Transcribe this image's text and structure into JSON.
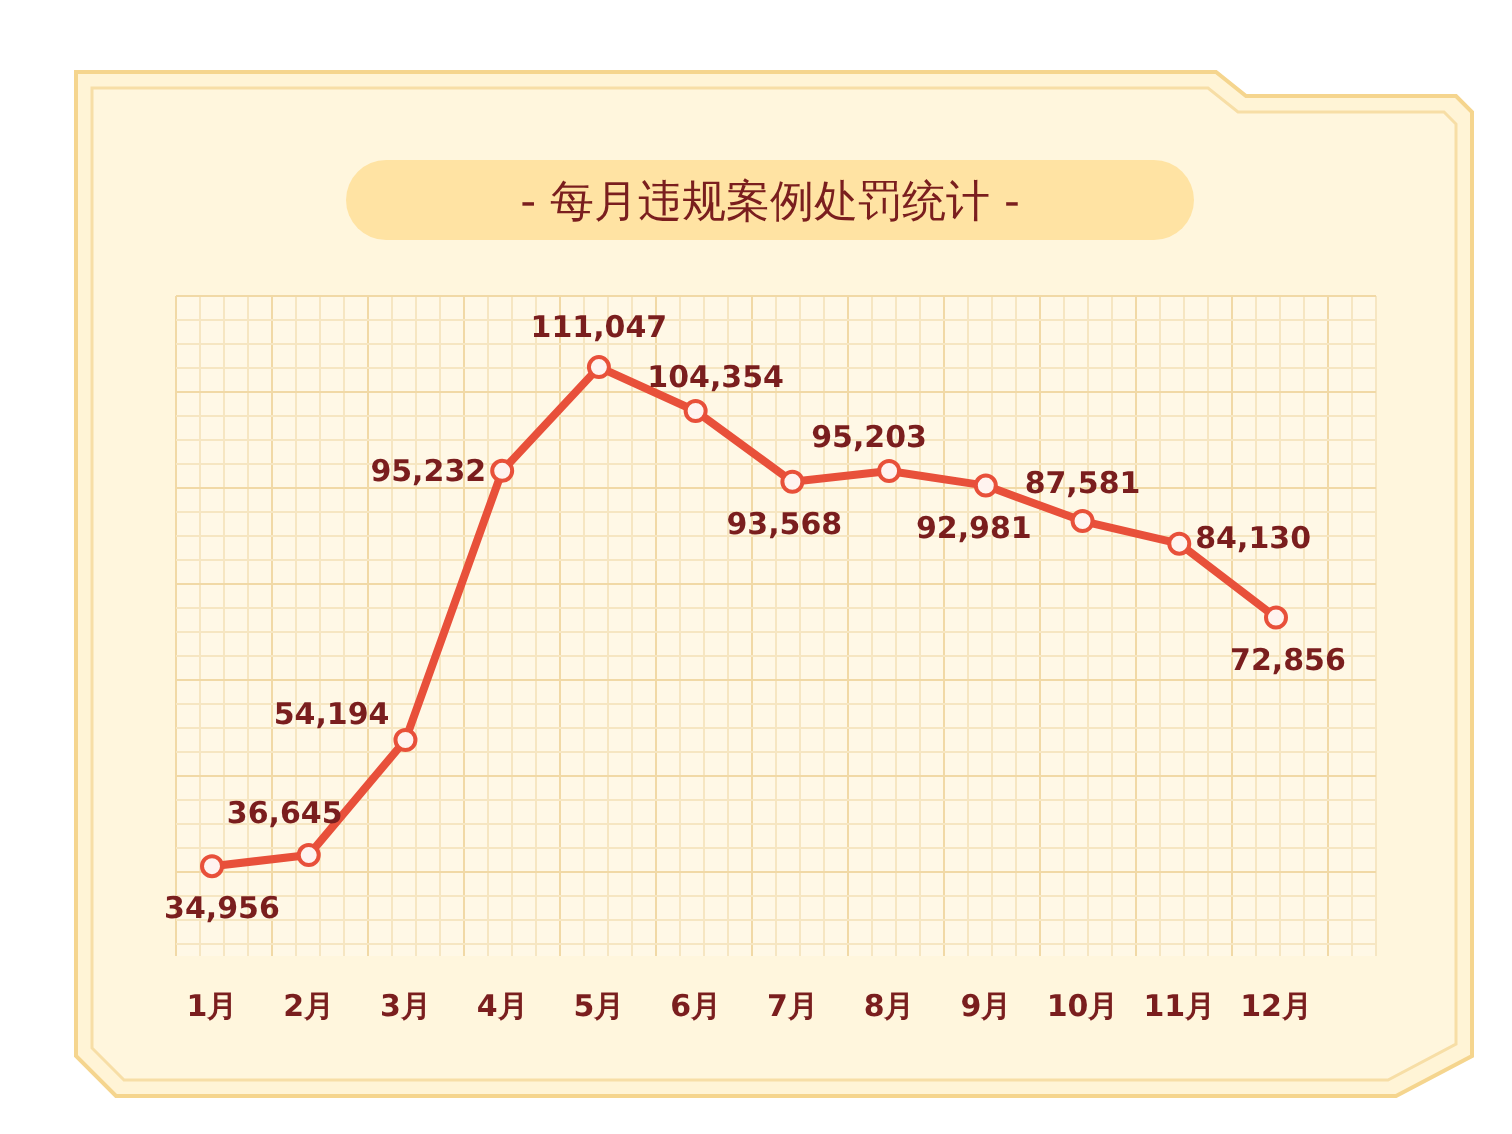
{
  "chart_data": {
    "type": "line",
    "title": "- 每月违规案例处罚统计 -",
    "categories": [
      "1月",
      "2月",
      "3月",
      "4月",
      "5月",
      "6月",
      "7月",
      "8月",
      "9月",
      "10月",
      "11月",
      "12月"
    ],
    "series": [
      {
        "color": "#e8503a",
        "values": [
          34956,
          36645,
          54194,
          95232,
          111047,
          104354,
          93568,
          95203,
          92981,
          87581,
          84130,
          72856
        ],
        "value_labels": [
          "34,956",
          "36,645",
          "54,194",
          "95,232",
          "111,047",
          "104,354",
          "93,568",
          "95,203",
          "92,981",
          "87,581",
          "84,130",
          "72,856"
        ]
      }
    ],
    "grid": true,
    "marker": "circle",
    "line_style": "solid"
  }
}
